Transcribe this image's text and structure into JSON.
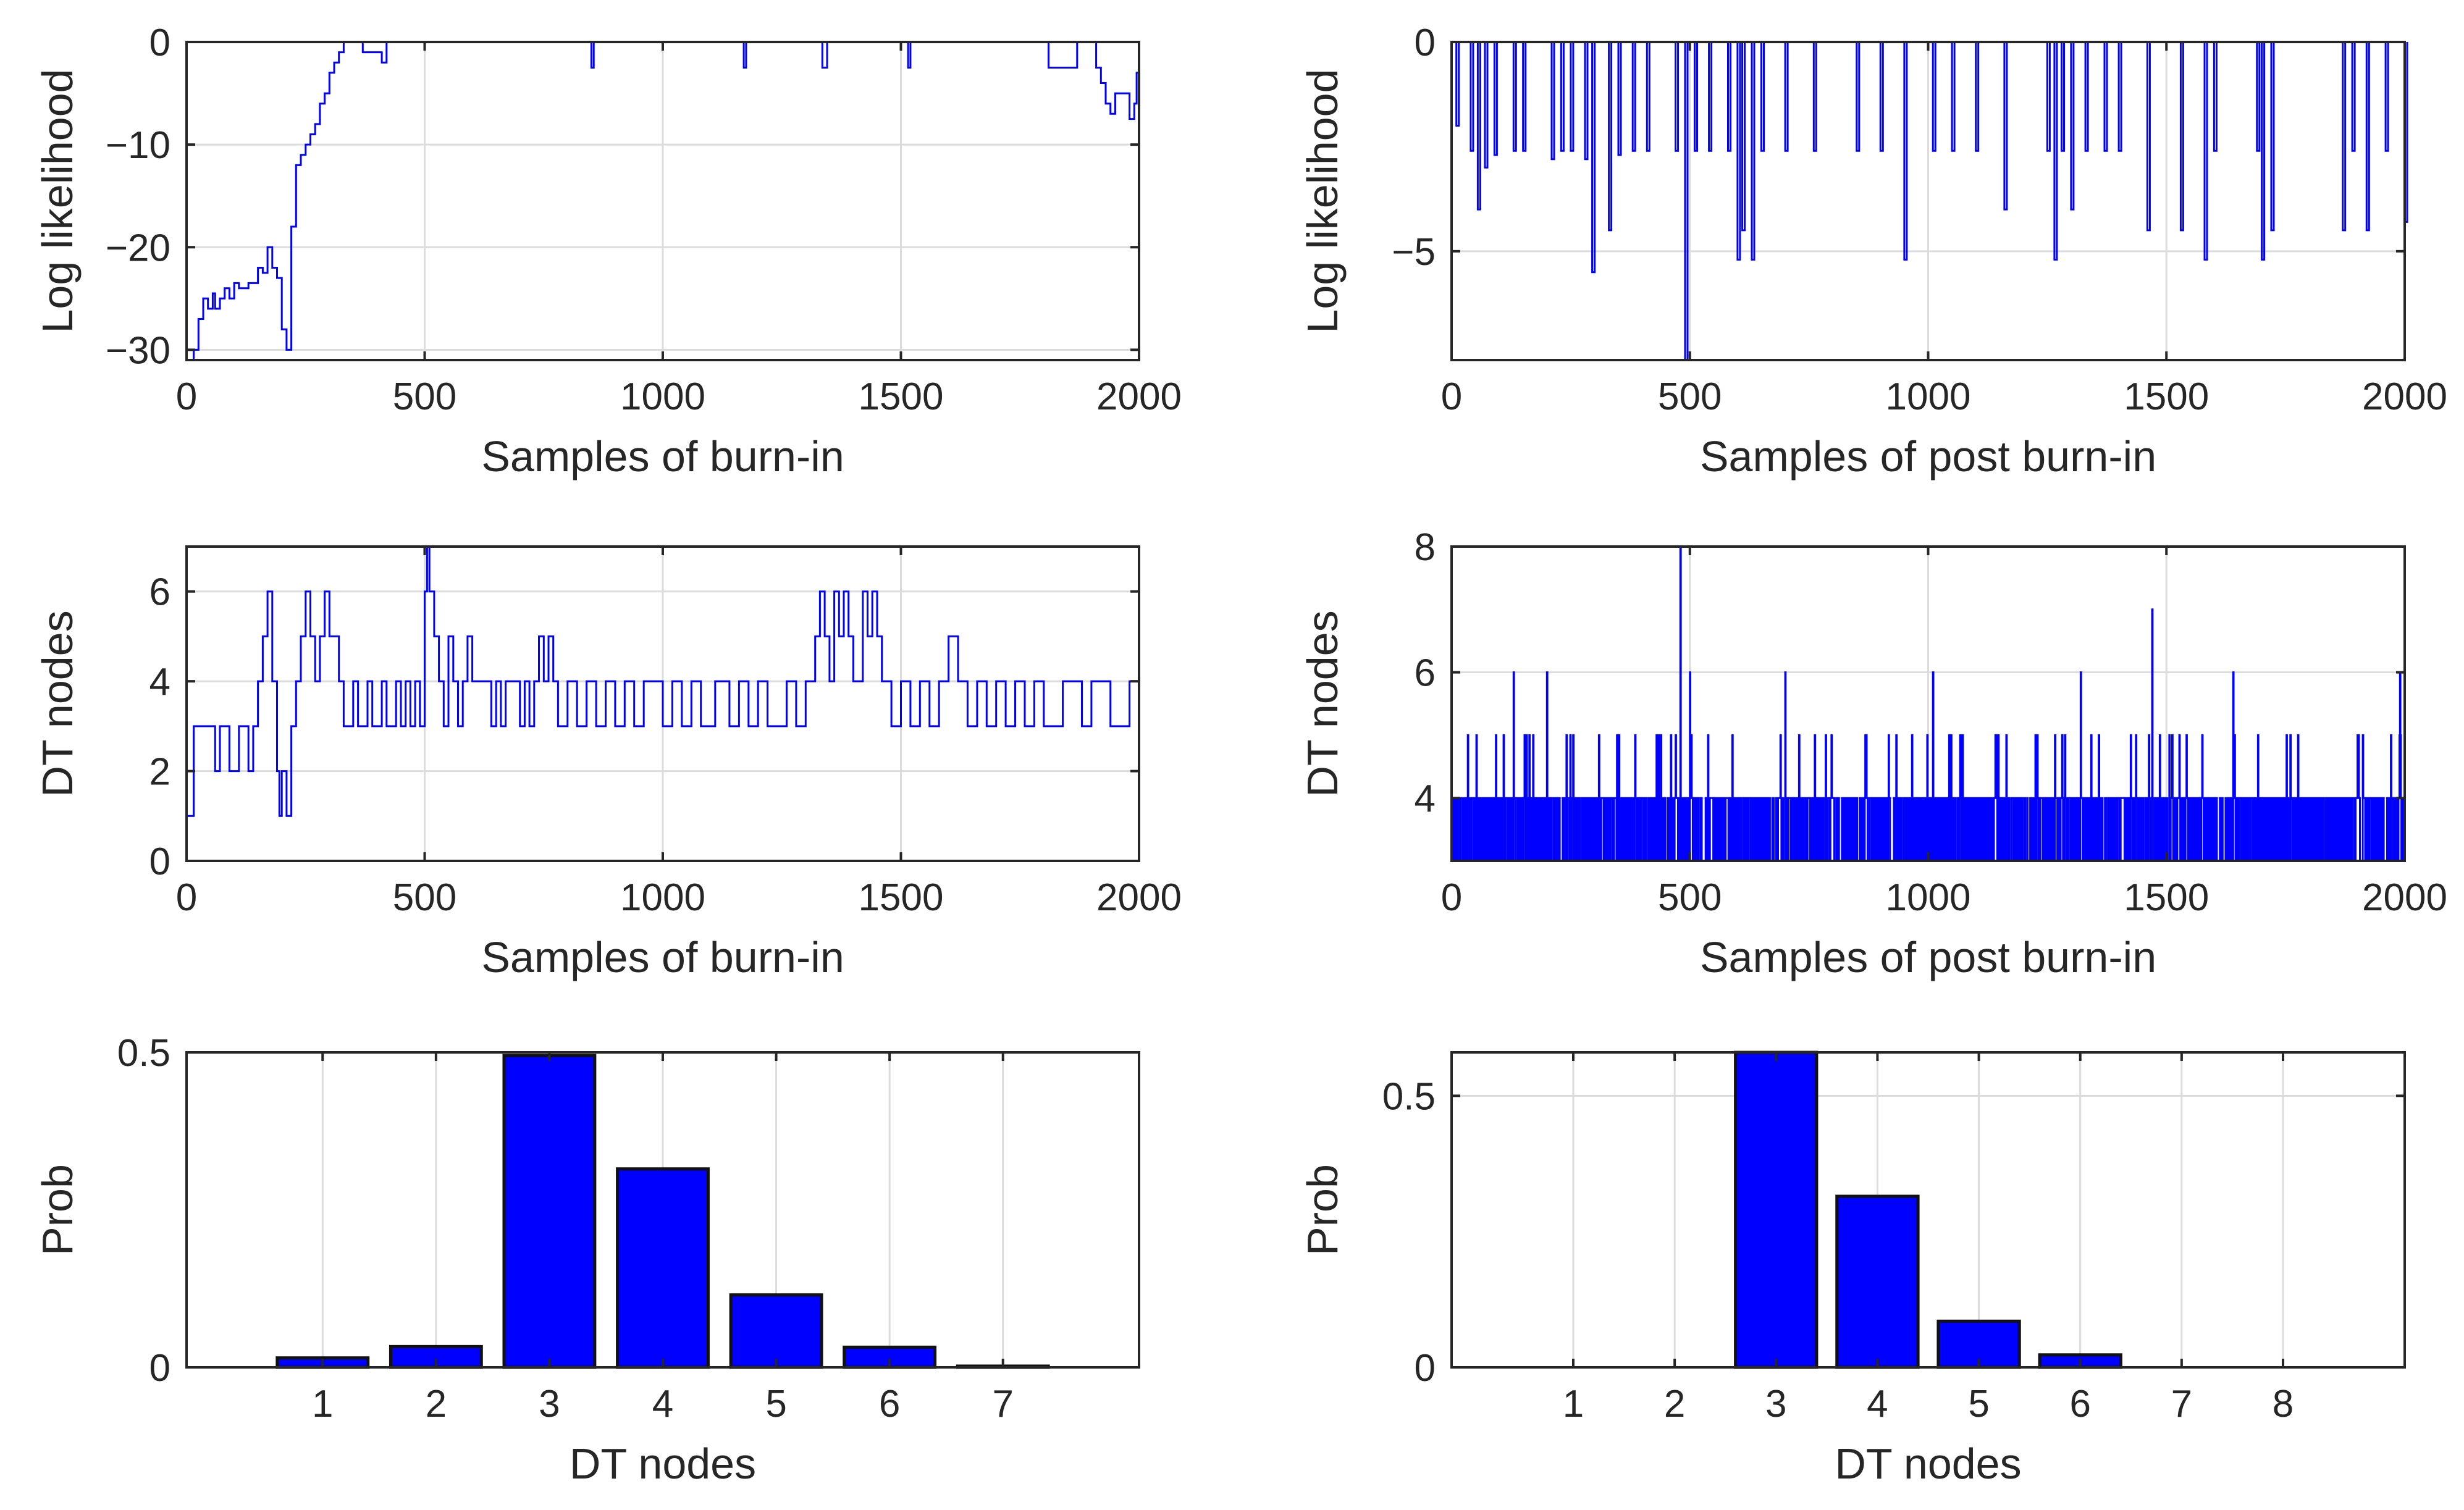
{
  "colors": {
    "series": "#0000ff",
    "bar_edge": "#111111",
    "grid": "#dcdcdc",
    "axis": "#262626"
  },
  "chart_data": [
    {
      "id": "burnin_loglik",
      "type": "line",
      "xlabel": "Samples of burn-in",
      "ylabel": "Log likelihood",
      "xlim": [
        0,
        2000
      ],
      "ylim": [
        -31,
        0
      ],
      "xticks": [
        0,
        500,
        1000,
        1500,
        2000
      ],
      "yticks": [
        -30,
        -20,
        -10,
        0
      ],
      "xtick_labels": [
        "0",
        "500",
        "1000",
        "1500",
        "2000"
      ],
      "ytick_labels": [
        "−30",
        "−20",
        "−10",
        "0"
      ],
      "grid": true,
      "x": [
        0,
        15,
        25,
        35,
        45,
        55,
        60,
        70,
        80,
        90,
        100,
        110,
        130,
        150,
        160,
        170,
        180,
        190,
        200,
        210,
        220,
        230,
        240,
        250,
        260,
        270,
        280,
        290,
        300,
        310,
        320,
        330,
        360,
        370,
        390,
        410,
        420,
        845,
        850,
        855,
        1170,
        1175,
        1330,
        1335,
        1345,
        1515,
        1520,
        1810,
        1820,
        1865,
        1870,
        1900,
        1910,
        1920,
        1930,
        1940,
        1950,
        1970,
        1980,
        1990,
        1995,
        2000
      ],
      "values": [
        -31,
        -30,
        -27,
        -25,
        -26,
        -24.5,
        -26,
        -25,
        -24,
        -25,
        -23.5,
        -24,
        -23.5,
        -22,
        -22.5,
        -20,
        -22,
        -23,
        -28,
        -30,
        -18,
        -12,
        -11,
        -10,
        -9,
        -8,
        -6,
        -5,
        -3,
        -2,
        -1,
        0,
        0,
        -1,
        -1,
        -2,
        0,
        0,
        -2.5,
        0,
        -2.5,
        0,
        0,
        -2.5,
        0,
        -2.5,
        0,
        -2.5,
        -2.5,
        -2.5,
        0,
        0,
        -2.5,
        -4,
        -6,
        -7,
        -5,
        -5,
        -7.5,
        -6,
        -3,
        -3
      ]
    },
    {
      "id": "postburnin_loglik",
      "type": "line",
      "xlabel": "Samples of post burn-in",
      "ylabel": "Log likelihood",
      "xlim": [
        0,
        2000
      ],
      "ylim": [
        -7.6,
        0
      ],
      "xticks": [
        0,
        500,
        1000,
        1500,
        2000
      ],
      "yticks": [
        -5,
        0
      ],
      "xtick_labels": [
        "0",
        "500",
        "1000",
        "1500",
        "2000"
      ],
      "ytick_labels": [
        "−5",
        "0"
      ],
      "grid": true,
      "spikes": [
        [
          10,
          -2
        ],
        [
          40,
          -2.6
        ],
        [
          55,
          -4
        ],
        [
          70,
          -3
        ],
        [
          90,
          -2.7
        ],
        [
          130,
          -2.6
        ],
        [
          150,
          -2.6
        ],
        [
          210,
          -2.8
        ],
        [
          230,
          -2.6
        ],
        [
          250,
          -2.6
        ],
        [
          280,
          -2.8
        ],
        [
          295,
          -5.5
        ],
        [
          330,
          -4.5
        ],
        [
          350,
          -2.7
        ],
        [
          380,
          -2.6
        ],
        [
          410,
          -2.6
        ],
        [
          470,
          -2.6
        ],
        [
          490,
          -7.6
        ],
        [
          510,
          -2.6
        ],
        [
          540,
          -2.6
        ],
        [
          580,
          -2.6
        ],
        [
          600,
          -5.2
        ],
        [
          610,
          -4.5
        ],
        [
          630,
          -5.2
        ],
        [
          650,
          -2.6
        ],
        [
          700,
          -2.6
        ],
        [
          760,
          -2.6
        ],
        [
          850,
          -2.6
        ],
        [
          900,
          -2.6
        ],
        [
          950,
          -5.2
        ],
        [
          1010,
          -2.6
        ],
        [
          1050,
          -2.6
        ],
        [
          1100,
          -2.6
        ],
        [
          1160,
          -4
        ],
        [
          1250,
          -2.6
        ],
        [
          1265,
          -5.2
        ],
        [
          1280,
          -2.6
        ],
        [
          1300,
          -4
        ],
        [
          1330,
          -2.6
        ],
        [
          1370,
          -2.6
        ],
        [
          1400,
          -2.6
        ],
        [
          1460,
          -4.5
        ],
        [
          1530,
          -4.5
        ],
        [
          1580,
          -5.2
        ],
        [
          1600,
          -2.6
        ],
        [
          1690,
          -2.6
        ],
        [
          1700,
          -5.2
        ],
        [
          1720,
          -4.5
        ],
        [
          1870,
          -4.5
        ],
        [
          1890,
          -2.6
        ],
        [
          1920,
          -4.5
        ],
        [
          1960,
          -2.6
        ],
        [
          2000,
          -4.3
        ]
      ]
    },
    {
      "id": "burnin_nodes",
      "type": "line",
      "xlabel": "Samples of burn-in",
      "ylabel": "DT nodes",
      "xlim": [
        0,
        2000
      ],
      "ylim": [
        0,
        7
      ],
      "xticks": [
        0,
        500,
        1000,
        1500,
        2000
      ],
      "yticks": [
        0,
        2,
        4,
        6
      ],
      "xtick_labels": [
        "0",
        "500",
        "1000",
        "1500",
        "2000"
      ],
      "ytick_labels": [
        "0",
        "2",
        "4",
        "6"
      ],
      "grid": true,
      "x": [
        0,
        15,
        60,
        70,
        90,
        110,
        130,
        140,
        150,
        160,
        170,
        180,
        190,
        195,
        200,
        210,
        220,
        230,
        240,
        250,
        260,
        270,
        280,
        290,
        300,
        320,
        330,
        350,
        360,
        380,
        390,
        410,
        420,
        440,
        450,
        460,
        470,
        480,
        490,
        500,
        505,
        510,
        520,
        530,
        540,
        550,
        560,
        570,
        580,
        590,
        600,
        640,
        650,
        660,
        670,
        700,
        710,
        720,
        730,
        740,
        750,
        760,
        770,
        780,
        800,
        820,
        840,
        860,
        880,
        900,
        920,
        940,
        960,
        1000,
        1020,
        1040,
        1060,
        1080,
        1110,
        1140,
        1160,
        1180,
        1200,
        1220,
        1260,
        1280,
        1300,
        1320,
        1330,
        1340,
        1350,
        1360,
        1370,
        1380,
        1390,
        1400,
        1420,
        1430,
        1440,
        1450,
        1460,
        1480,
        1500,
        1520,
        1540,
        1560,
        1580,
        1600,
        1620,
        1640,
        1660,
        1680,
        1700,
        1720,
        1740,
        1760,
        1780,
        1800,
        1840,
        1880,
        1900,
        1940,
        1980,
        2000
      ],
      "values": [
        1,
        3,
        2,
        3,
        2,
        3,
        2,
        3,
        4,
        5,
        6,
        4,
        2,
        1,
        2,
        1,
        3,
        4,
        5,
        6,
        5,
        4,
        5,
        6,
        5,
        4,
        3,
        4,
        3,
        4,
        3,
        4,
        3,
        4,
        3,
        4,
        3,
        4,
        3,
        6,
        7,
        6,
        5,
        4,
        3,
        5,
        4,
        3,
        4,
        5,
        4,
        3,
        4,
        3,
        4,
        3,
        4,
        3,
        4,
        5,
        4,
        5,
        4,
        3,
        4,
        3,
        4,
        3,
        4,
        3,
        4,
        3,
        4,
        3,
        4,
        3,
        4,
        3,
        4,
        3,
        4,
        3,
        4,
        3,
        4,
        3,
        4,
        5,
        6,
        5,
        4,
        6,
        5,
        6,
        5,
        4,
        6,
        5,
        6,
        5,
        4,
        3,
        4,
        3,
        4,
        3,
        4,
        5,
        4,
        3,
        4,
        3,
        4,
        3,
        4,
        3,
        4,
        3,
        4,
        3,
        4,
        3,
        4,
        3
      ]
    },
    {
      "id": "postburnin_nodes",
      "type": "line",
      "xlabel": "Samples of post burn-in",
      "ylabel": "DT nodes",
      "xlim": [
        0,
        2000
      ],
      "ylim": [
        3,
        8
      ],
      "xticks": [
        0,
        500,
        1000,
        1500,
        2000
      ],
      "yticks": [
        4,
        6,
        8
      ],
      "xtick_labels": [
        "0",
        "500",
        "1000",
        "1500",
        "2000"
      ],
      "ytick_labels": [
        "4",
        "6",
        "8"
      ],
      "grid": true,
      "range_note": "dense oscillation between 3 and 4, occasional jumps to 5 and 6",
      "peaks": [
        [
          480,
          8
        ],
        [
          1470,
          7
        ],
        [
          130,
          6
        ],
        [
          500,
          6
        ],
        [
          1010,
          6
        ],
        [
          1320,
          6
        ],
        [
          1640,
          6
        ],
        [
          1990,
          6
        ],
        [
          200,
          6
        ],
        [
          700,
          6
        ]
      ]
    },
    {
      "id": "burnin_hist",
      "type": "bar",
      "xlabel": "DT nodes",
      "ylabel": "Prob",
      "categories": [
        "1",
        "2",
        "3",
        "4",
        "5",
        "6",
        "7"
      ],
      "values": [
        0.015,
        0.033,
        0.495,
        0.315,
        0.115,
        0.032,
        0.002
      ],
      "xlim": [
        -0.2,
        8.2
      ],
      "ylim": [
        0,
        0.5
      ],
      "yticks": [
        0,
        0.5
      ],
      "ytick_labels": [
        "0",
        "0.5"
      ],
      "grid": true
    },
    {
      "id": "postburnin_hist",
      "type": "bar",
      "xlabel": "DT nodes",
      "ylabel": "Prob",
      "categories": [
        "1",
        "2",
        "3",
        "4",
        "5",
        "6",
        "7",
        "8"
      ],
      "values": [
        0,
        0,
        0.58,
        0.315,
        0.085,
        0.023,
        0,
        0
      ],
      "xlim": [
        -0.2,
        9.2
      ],
      "ylim": [
        0,
        0.58
      ],
      "yticks": [
        0,
        0.5
      ],
      "ytick_labels": [
        "0",
        "0.5"
      ],
      "grid": true
    }
  ]
}
